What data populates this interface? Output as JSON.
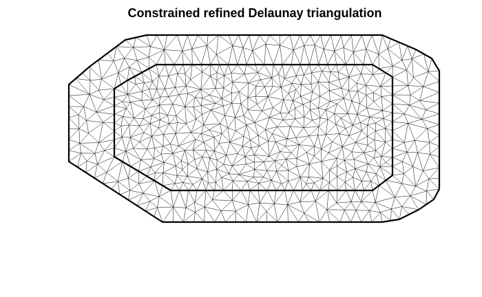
{
  "figure": {
    "title": "Constrained refined Delaunay triangulation"
  },
  "diagram": {
    "type": "constrained-refined-delaunay-triangulation",
    "regions": [
      "outer-boundary",
      "inner-boundary"
    ],
    "colors": {
      "mesh_edge": "#000000",
      "boundary": "#000000",
      "background": "#ffffff"
    }
  }
}
